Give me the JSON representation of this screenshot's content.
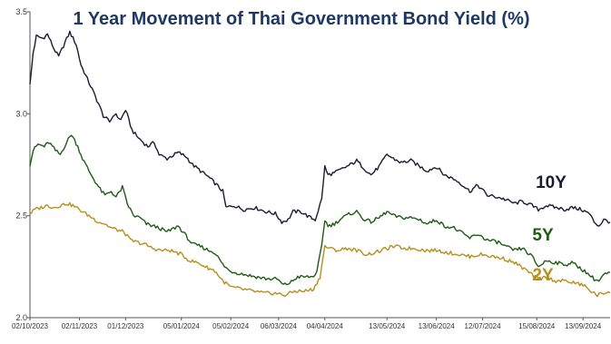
{
  "chart_data": {
    "type": "line",
    "title": "1 Year Movement of Thai Government Bond Yield (%)",
    "xlabel": "",
    "ylabel": "",
    "ylim": [
      2.0,
      3.5
    ],
    "yticks": [
      "2.0",
      "2.5",
      "3.0",
      "3.5"
    ],
    "xlim": [
      "2023-10-02",
      "2024-09-30"
    ],
    "xticks": [
      "02/10/2023",
      "02/11/2023",
      "01/12/2023",
      "05/01/2024",
      "05/02/2024",
      "06/03/2024",
      "04/04/2024",
      "13/05/2024",
      "13/06/2024",
      "12/07/2024",
      "15/08/2024",
      "13/09/2024"
    ],
    "grid": false,
    "legend": "none",
    "series": [
      {
        "name": "10Y",
        "color": "#1b1b33",
        "points": [
          [
            "2023-10-02",
            3.14
          ],
          [
            "2023-10-04",
            3.3
          ],
          [
            "2023-10-06",
            3.38
          ],
          [
            "2023-10-10",
            3.37
          ],
          [
            "2023-10-13",
            3.39
          ],
          [
            "2023-10-17",
            3.32
          ],
          [
            "2023-10-20",
            3.28
          ],
          [
            "2023-10-24",
            3.35
          ],
          [
            "2023-10-27",
            3.4
          ],
          [
            "2023-10-31",
            3.34
          ],
          [
            "2023-11-03",
            3.24
          ],
          [
            "2023-11-07",
            3.17
          ],
          [
            "2023-11-10",
            3.12
          ],
          [
            "2023-11-14",
            3.05
          ],
          [
            "2023-11-17",
            2.99
          ],
          [
            "2023-11-21",
            2.96
          ],
          [
            "2023-11-24",
            3.0
          ],
          [
            "2023-11-28",
            2.97
          ],
          [
            "2023-12-01",
            3.02
          ],
          [
            "2023-12-05",
            2.92
          ],
          [
            "2023-12-08",
            2.89
          ],
          [
            "2023-12-12",
            2.86
          ],
          [
            "2023-12-15",
            2.84
          ],
          [
            "2023-12-19",
            2.86
          ],
          [
            "2023-12-22",
            2.8
          ],
          [
            "2023-12-27",
            2.78
          ],
          [
            "2024-01-03",
            2.81
          ],
          [
            "2024-01-08",
            2.79
          ],
          [
            "2024-01-12",
            2.75
          ],
          [
            "2024-01-17",
            2.72
          ],
          [
            "2024-01-22",
            2.69
          ],
          [
            "2024-01-26",
            2.66
          ],
          [
            "2024-01-31",
            2.62
          ],
          [
            "2024-02-02",
            2.54
          ],
          [
            "2024-02-07",
            2.55
          ],
          [
            "2024-02-13",
            2.53
          ],
          [
            "2024-02-20",
            2.54
          ],
          [
            "2024-02-27",
            2.52
          ],
          [
            "2024-03-04",
            2.51
          ],
          [
            "2024-03-08",
            2.47
          ],
          [
            "2024-03-12",
            2.48
          ],
          [
            "2024-03-15",
            2.52
          ],
          [
            "2024-03-20",
            2.52
          ],
          [
            "2024-03-26",
            2.49
          ],
          [
            "2024-03-29",
            2.48
          ],
          [
            "2024-04-02",
            2.58
          ],
          [
            "2024-04-04",
            2.74
          ],
          [
            "2024-04-06",
            2.7
          ],
          [
            "2024-04-10",
            2.71
          ],
          [
            "2024-04-15",
            2.73
          ],
          [
            "2024-04-20",
            2.75
          ],
          [
            "2024-04-24",
            2.77
          ],
          [
            "2024-04-29",
            2.73
          ],
          [
            "2024-05-03",
            2.7
          ],
          [
            "2024-05-08",
            2.74
          ],
          [
            "2024-05-13",
            2.8
          ],
          [
            "2024-05-17",
            2.78
          ],
          [
            "2024-05-22",
            2.76
          ],
          [
            "2024-05-28",
            2.77
          ],
          [
            "2024-06-03",
            2.74
          ],
          [
            "2024-06-07",
            2.72
          ],
          [
            "2024-06-13",
            2.74
          ],
          [
            "2024-06-18",
            2.7
          ],
          [
            "2024-06-24",
            2.68
          ],
          [
            "2024-06-28",
            2.66
          ],
          [
            "2024-07-04",
            2.62
          ],
          [
            "2024-07-09",
            2.65
          ],
          [
            "2024-07-15",
            2.6
          ],
          [
            "2024-07-22",
            2.59
          ],
          [
            "2024-07-26",
            2.58
          ],
          [
            "2024-08-01",
            2.56
          ],
          [
            "2024-08-06",
            2.57
          ],
          [
            "2024-08-12",
            2.55
          ],
          [
            "2024-08-16",
            2.53
          ],
          [
            "2024-08-21",
            2.55
          ],
          [
            "2024-08-27",
            2.54
          ],
          [
            "2024-09-02",
            2.53
          ],
          [
            "2024-09-06",
            2.54
          ],
          [
            "2024-09-12",
            2.53
          ],
          [
            "2024-09-17",
            2.51
          ],
          [
            "2024-09-20",
            2.47
          ],
          [
            "2024-09-23",
            2.45
          ],
          [
            "2024-09-26",
            2.48
          ],
          [
            "2024-09-30",
            2.47
          ]
        ]
      },
      {
        "name": "5Y",
        "color": "#1e5c14",
        "points": [
          [
            "2023-10-02",
            2.75
          ],
          [
            "2023-10-04",
            2.82
          ],
          [
            "2023-10-07",
            2.85
          ],
          [
            "2023-10-11",
            2.84
          ],
          [
            "2023-10-14",
            2.86
          ],
          [
            "2023-10-18",
            2.82
          ],
          [
            "2023-10-21",
            2.8
          ],
          [
            "2023-10-25",
            2.86
          ],
          [
            "2023-10-28",
            2.9
          ],
          [
            "2023-11-01",
            2.84
          ],
          [
            "2023-11-04",
            2.78
          ],
          [
            "2023-11-08",
            2.72
          ],
          [
            "2023-11-11",
            2.68
          ],
          [
            "2023-11-15",
            2.63
          ],
          [
            "2023-11-18",
            2.6
          ],
          [
            "2023-11-22",
            2.62
          ],
          [
            "2023-11-25",
            2.59
          ],
          [
            "2023-11-29",
            2.64
          ],
          [
            "2023-12-02",
            2.56
          ],
          [
            "2023-12-06",
            2.5
          ],
          [
            "2023-12-10",
            2.49
          ],
          [
            "2023-12-14",
            2.46
          ],
          [
            "2023-12-18",
            2.45
          ],
          [
            "2023-12-22",
            2.44
          ],
          [
            "2023-12-27",
            2.42
          ],
          [
            "2024-01-03",
            2.45
          ],
          [
            "2024-01-08",
            2.4
          ],
          [
            "2024-01-12",
            2.36
          ],
          [
            "2024-01-17",
            2.35
          ],
          [
            "2024-01-22",
            2.33
          ],
          [
            "2024-01-26",
            2.32
          ],
          [
            "2024-01-31",
            2.26
          ],
          [
            "2024-02-04",
            2.23
          ],
          [
            "2024-02-09",
            2.22
          ],
          [
            "2024-02-15",
            2.21
          ],
          [
            "2024-02-21",
            2.2
          ],
          [
            "2024-02-28",
            2.19
          ],
          [
            "2024-03-05",
            2.19
          ],
          [
            "2024-03-09",
            2.16
          ],
          [
            "2024-03-13",
            2.17
          ],
          [
            "2024-03-18",
            2.2
          ],
          [
            "2024-03-22",
            2.2
          ],
          [
            "2024-03-27",
            2.2
          ],
          [
            "2024-03-30",
            2.22
          ],
          [
            "2024-04-02",
            2.35
          ],
          [
            "2024-04-04",
            2.48
          ],
          [
            "2024-04-06",
            2.45
          ],
          [
            "2024-04-10",
            2.46
          ],
          [
            "2024-04-15",
            2.49
          ],
          [
            "2024-04-20",
            2.51
          ],
          [
            "2024-04-24",
            2.52
          ],
          [
            "2024-04-29",
            2.48
          ],
          [
            "2024-05-03",
            2.47
          ],
          [
            "2024-05-08",
            2.49
          ],
          [
            "2024-05-13",
            2.52
          ],
          [
            "2024-05-17",
            2.5
          ],
          [
            "2024-05-22",
            2.49
          ],
          [
            "2024-05-28",
            2.49
          ],
          [
            "2024-06-03",
            2.48
          ],
          [
            "2024-06-07",
            2.46
          ],
          [
            "2024-06-13",
            2.48
          ],
          [
            "2024-06-18",
            2.45
          ],
          [
            "2024-06-24",
            2.44
          ],
          [
            "2024-06-28",
            2.42
          ],
          [
            "2024-07-04",
            2.39
          ],
          [
            "2024-07-09",
            2.41
          ],
          [
            "2024-07-15",
            2.38
          ],
          [
            "2024-07-22",
            2.37
          ],
          [
            "2024-07-26",
            2.35
          ],
          [
            "2024-08-01",
            2.33
          ],
          [
            "2024-08-06",
            2.34
          ],
          [
            "2024-08-12",
            2.3
          ],
          [
            "2024-08-16",
            2.25
          ],
          [
            "2024-08-21",
            2.28
          ],
          [
            "2024-08-27",
            2.27
          ],
          [
            "2024-09-02",
            2.26
          ],
          [
            "2024-09-06",
            2.27
          ],
          [
            "2024-09-12",
            2.24
          ],
          [
            "2024-09-17",
            2.21
          ],
          [
            "2024-09-20",
            2.19
          ],
          [
            "2024-09-23",
            2.18
          ],
          [
            "2024-09-26",
            2.21
          ],
          [
            "2024-09-30",
            2.22
          ]
        ]
      },
      {
        "name": "2Y",
        "color": "#b5901a",
        "points": [
          [
            "2023-10-02",
            2.51
          ],
          [
            "2023-10-05",
            2.53
          ],
          [
            "2023-10-09",
            2.54
          ],
          [
            "2023-10-13",
            2.55
          ],
          [
            "2023-10-17",
            2.54
          ],
          [
            "2023-10-21",
            2.55
          ],
          [
            "2023-10-25",
            2.56
          ],
          [
            "2023-10-29",
            2.55
          ],
          [
            "2023-11-02",
            2.53
          ],
          [
            "2023-11-06",
            2.51
          ],
          [
            "2023-11-10",
            2.49
          ],
          [
            "2023-11-14",
            2.47
          ],
          [
            "2023-11-18",
            2.46
          ],
          [
            "2023-11-22",
            2.44
          ],
          [
            "2023-11-26",
            2.43
          ],
          [
            "2023-11-30",
            2.42
          ],
          [
            "2023-12-04",
            2.38
          ],
          [
            "2023-12-08",
            2.37
          ],
          [
            "2023-12-13",
            2.36
          ],
          [
            "2023-12-18",
            2.34
          ],
          [
            "2023-12-23",
            2.33
          ],
          [
            "2023-12-29",
            2.33
          ],
          [
            "2024-01-05",
            2.31
          ],
          [
            "2024-01-10",
            2.28
          ],
          [
            "2024-01-15",
            2.27
          ],
          [
            "2024-01-20",
            2.25
          ],
          [
            "2024-01-26",
            2.23
          ],
          [
            "2024-01-31",
            2.18
          ],
          [
            "2024-02-05",
            2.15
          ],
          [
            "2024-02-12",
            2.14
          ],
          [
            "2024-02-19",
            2.13
          ],
          [
            "2024-02-26",
            2.12
          ],
          [
            "2024-03-04",
            2.12
          ],
          [
            "2024-03-10",
            2.11
          ],
          [
            "2024-03-16",
            2.13
          ],
          [
            "2024-03-22",
            2.13
          ],
          [
            "2024-03-28",
            2.14
          ],
          [
            "2024-04-01",
            2.2
          ],
          [
            "2024-04-04",
            2.35
          ],
          [
            "2024-04-07",
            2.34
          ],
          [
            "2024-04-12",
            2.33
          ],
          [
            "2024-04-18",
            2.34
          ],
          [
            "2024-04-24",
            2.33
          ],
          [
            "2024-04-30",
            2.31
          ],
          [
            "2024-05-06",
            2.32
          ],
          [
            "2024-05-13",
            2.34
          ],
          [
            "2024-05-18",
            2.35
          ],
          [
            "2024-05-24",
            2.34
          ],
          [
            "2024-05-30",
            2.34
          ],
          [
            "2024-06-06",
            2.33
          ],
          [
            "2024-06-13",
            2.33
          ],
          [
            "2024-06-20",
            2.32
          ],
          [
            "2024-06-27",
            2.31
          ],
          [
            "2024-07-04",
            2.3
          ],
          [
            "2024-07-11",
            2.31
          ],
          [
            "2024-07-18",
            2.3
          ],
          [
            "2024-07-25",
            2.29
          ],
          [
            "2024-08-01",
            2.27
          ],
          [
            "2024-08-07",
            2.24
          ],
          [
            "2024-08-12",
            2.21
          ],
          [
            "2024-08-16",
            2.19
          ],
          [
            "2024-08-21",
            2.2
          ],
          [
            "2024-08-27",
            2.18
          ],
          [
            "2024-09-02",
            2.18
          ],
          [
            "2024-09-08",
            2.17
          ],
          [
            "2024-09-13",
            2.16
          ],
          [
            "2024-09-18",
            2.13
          ],
          [
            "2024-09-22",
            2.11
          ],
          [
            "2024-09-26",
            2.12
          ],
          [
            "2024-09-30",
            2.13
          ]
        ]
      }
    ]
  }
}
